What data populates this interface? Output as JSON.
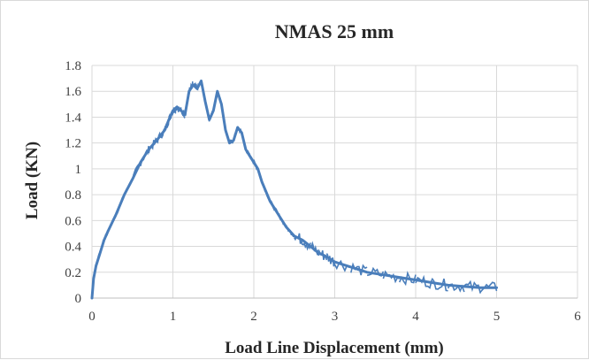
{
  "chart_data": {
    "type": "line",
    "title": "NMAS 25 mm",
    "xlabel": "Load Line Displacement (mm)",
    "ylabel": "Load (KN)",
    "xlim": [
      0,
      6
    ],
    "ylim": [
      0,
      1.8
    ],
    "x_ticks": [
      "0",
      "1",
      "2",
      "3",
      "4",
      "5",
      "6"
    ],
    "y_ticks": [
      "0",
      "0.2",
      "0.4",
      "0.6",
      "0.8",
      "1",
      "1.2",
      "1.4",
      "1.6",
      "1.8"
    ],
    "grid": true,
    "legend": "none",
    "series": [
      {
        "color": "#4a7ebb",
        "x": [
          0.0,
          0.02,
          0.05,
          0.1,
          0.15,
          0.2,
          0.3,
          0.4,
          0.5,
          0.6,
          0.7,
          0.8,
          0.9,
          0.95,
          1.0,
          1.05,
          1.1,
          1.15,
          1.2,
          1.25,
          1.3,
          1.35,
          1.4,
          1.45,
          1.5,
          1.55,
          1.6,
          1.65,
          1.7,
          1.75,
          1.8,
          1.85,
          1.9,
          1.95,
          2.0,
          2.05,
          2.1,
          2.2,
          2.3,
          2.4,
          2.5,
          2.6,
          2.7,
          2.8,
          2.9,
          3.0,
          3.2,
          3.4,
          3.6,
          3.8,
          4.0,
          4.2,
          4.4,
          4.6,
          4.8,
          5.0
        ],
        "y": [
          0.0,
          0.15,
          0.25,
          0.35,
          0.45,
          0.52,
          0.65,
          0.8,
          0.92,
          1.05,
          1.15,
          1.22,
          1.3,
          1.38,
          1.45,
          1.48,
          1.45,
          1.42,
          1.6,
          1.65,
          1.62,
          1.68,
          1.52,
          1.38,
          1.45,
          1.6,
          1.5,
          1.3,
          1.2,
          1.22,
          1.32,
          1.28,
          1.15,
          1.1,
          1.05,
          1.0,
          0.9,
          0.75,
          0.65,
          0.55,
          0.48,
          0.45,
          0.4,
          0.35,
          0.32,
          0.28,
          0.24,
          0.2,
          0.18,
          0.16,
          0.14,
          0.12,
          0.1,
          0.09,
          0.08,
          0.08
        ]
      }
    ]
  }
}
